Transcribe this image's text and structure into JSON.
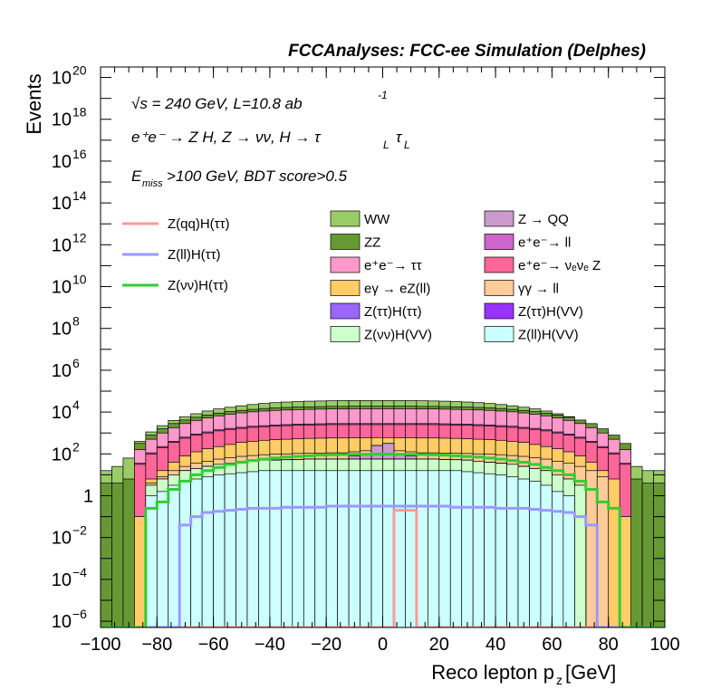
{
  "chart_data": {
    "type": "histogram",
    "title": "FCCAnalyses: FCC-ee Simulation (Delphes)",
    "xlabel": "Reco lepton p",
    "xlabel_sub": "z",
    "xlabel_unit": "[GeV]",
    "ylabel": "Events",
    "xlim": [
      -100,
      100
    ],
    "ylim_log10": [
      -6.3,
      20.5
    ],
    "log_y": true,
    "grid": false,
    "bin_edges_start": -100,
    "bin_width": 4,
    "x_ticks": [
      -100,
      -80,
      -60,
      -40,
      -20,
      0,
      20,
      40,
      60,
      80,
      100
    ],
    "x_tick_labels": [
      "−100",
      "−80",
      "−60",
      "−40",
      "−20",
      "0",
      "20",
      "40",
      "60",
      "80",
      "100"
    ],
    "y_tick_labels": [
      {
        "exp": -6,
        "base": "10",
        "sup": "−6"
      },
      {
        "exp": -4,
        "base": "10",
        "sup": "−4"
      },
      {
        "exp": -2,
        "base": "10",
        "sup": "−2"
      },
      {
        "exp": 0,
        "base": "1",
        "sup": ""
      },
      {
        "exp": 2,
        "base": "10",
        "sup": "2"
      },
      {
        "exp": 4,
        "base": "10",
        "sup": "4"
      },
      {
        "exp": 6,
        "base": "10",
        "sup": "6"
      },
      {
        "exp": 8,
        "base": "10",
        "sup": "8"
      },
      {
        "exp": 10,
        "base": "10",
        "sup": "10"
      },
      {
        "exp": 12,
        "base": "10",
        "sup": "12"
      },
      {
        "exp": 14,
        "base": "10",
        "sup": "14"
      },
      {
        "exp": 16,
        "base": "10",
        "sup": "16"
      },
      {
        "exp": 18,
        "base": "10",
        "sup": "18"
      },
      {
        "exp": 20,
        "base": "10",
        "sup": "20"
      }
    ],
    "annotations": [
      "√s = 240 GeV, L=10.8 ab",
      "-1",
      "e⁺e⁻ → Z H, Z → νν, H → τ",
      "L",
      "E",
      "miss",
      ">100 GeV, BDT score>0.5"
    ],
    "stack_layers_log10": [
      {
        "name": "Z(ℓℓ)H(VV)",
        "color": "#ccffff",
        "values": [
          -7,
          -7,
          -7,
          -7,
          0,
          0.2,
          0.5,
          0.7,
          0.8,
          0.9,
          1,
          1.05,
          1.1,
          1.15,
          1.2,
          1.2,
          1.2,
          1.2,
          1.2,
          1.2,
          1.2,
          1.2,
          1.2,
          1.2,
          1.2,
          1.2,
          1.2,
          1.2,
          1.2,
          1.2,
          1.2,
          1.2,
          1.15,
          1.1,
          1.05,
          1,
          0.9,
          0.8,
          0.7,
          0.5,
          0.2,
          0,
          -7,
          -7,
          -7,
          -7,
          -7,
          -7,
          -7,
          -7
        ]
      },
      {
        "name": "Z(νν)H(VV)",
        "color": "#ccffcc",
        "values": [
          -7,
          -7,
          -7,
          -7,
          0.5,
          0.8,
          1.0,
          1.2,
          1.3,
          1.4,
          1.5,
          1.55,
          1.6,
          1.65,
          1.7,
          1.7,
          1.72,
          1.73,
          1.75,
          1.75,
          1.75,
          1.75,
          1.75,
          1.75,
          1.75,
          1.75,
          1.75,
          1.75,
          1.75,
          1.75,
          1.73,
          1.72,
          1.7,
          1.65,
          1.6,
          1.55,
          1.5,
          1.4,
          1.3,
          1.2,
          1.0,
          0.8,
          0.5,
          -7,
          -7,
          -7,
          -7,
          -7,
          -7,
          -7
        ]
      },
      {
        "name": "Z(ττ)H(VV)",
        "color": "#9933ff",
        "values": [
          -7,
          -7,
          -7,
          -7,
          0.5,
          0.8,
          1.0,
          1.2,
          1.3,
          1.4,
          1.5,
          1.55,
          1.6,
          1.65,
          1.7,
          1.7,
          1.72,
          1.73,
          1.75,
          1.75,
          1.75,
          1.75,
          1.75,
          1.75,
          1.75,
          1.75,
          1.75,
          1.75,
          1.75,
          1.75,
          1.73,
          1.72,
          1.7,
          1.65,
          1.6,
          1.55,
          1.5,
          1.4,
          1.3,
          1.2,
          1.0,
          0.8,
          0.5,
          -7,
          -7,
          -7,
          -7,
          -7,
          -7,
          -7
        ]
      },
      {
        "name": "Z(ττ)H(ττ)",
        "color": "#9966ff",
        "values": [
          -7,
          -7,
          -7,
          -7,
          0.5,
          0.8,
          1.0,
          1.2,
          1.3,
          1.4,
          1.5,
          1.55,
          1.6,
          1.65,
          1.7,
          1.7,
          1.72,
          1.73,
          1.75,
          1.75,
          1.75,
          1.75,
          1.75,
          1.75,
          1.75,
          1.75,
          1.75,
          1.75,
          1.75,
          1.75,
          1.73,
          1.72,
          1.7,
          1.65,
          1.6,
          1.55,
          1.5,
          1.4,
          1.3,
          1.2,
          1.0,
          0.8,
          0.5,
          -7,
          -7,
          -7,
          -7,
          -7,
          -7,
          -7
        ]
      },
      {
        "name": "Z → QQ",
        "color": "#cc99cc",
        "values": [
          -7,
          -7,
          -7,
          -7,
          0.5,
          0.8,
          1.0,
          1.2,
          1.3,
          1.4,
          1.5,
          1.55,
          1.6,
          1.65,
          1.7,
          1.7,
          1.72,
          1.73,
          1.75,
          1.75,
          1.75,
          1.75,
          1.9,
          2.0,
          2.4,
          2.5,
          2.0,
          1.9,
          1.75,
          1.75,
          1.73,
          1.72,
          1.7,
          1.65,
          1.6,
          1.55,
          1.5,
          1.4,
          1.3,
          1.2,
          1.0,
          0.8,
          0.5,
          -7,
          -7,
          -7,
          -7,
          -7,
          -7,
          -7
        ]
      },
      {
        "name": "γγ → ℓℓ",
        "color": "#ffcc99",
        "values": [
          -7,
          -7,
          -7,
          -7,
          0.6,
          0.9,
          1.2,
          1.4,
          1.55,
          1.65,
          1.75,
          1.82,
          1.88,
          1.92,
          1.96,
          1.99,
          2.0,
          2.02,
          2.03,
          2.04,
          2.05,
          2.05,
          2.1,
          2.15,
          2.4,
          2.5,
          2.15,
          2.1,
          2.05,
          2.05,
          2.04,
          2.03,
          2.02,
          2.0,
          1.99,
          1.96,
          1.92,
          1.88,
          1.82,
          1.75,
          1.65,
          1.55,
          1.4,
          1.2,
          0.9,
          -7,
          -7,
          -7,
          -7,
          -7
        ]
      },
      {
        "name": "eγ → eZ(ℓℓ)",
        "color": "#ffcc66",
        "values": [
          -7,
          -7,
          -7,
          -1.0,
          0.8,
          1.2,
          1.6,
          1.9,
          2.1,
          2.25,
          2.35,
          2.45,
          2.55,
          2.6,
          2.65,
          2.68,
          2.7,
          2.72,
          2.74,
          2.75,
          2.76,
          2.76,
          2.77,
          2.77,
          2.78,
          2.78,
          2.77,
          2.77,
          2.76,
          2.76,
          2.75,
          2.74,
          2.72,
          2.7,
          2.68,
          2.65,
          2.6,
          2.55,
          2.45,
          2.35,
          2.25,
          2.1,
          1.9,
          1.6,
          1.2,
          0.8,
          -1.0,
          -7,
          -7,
          -7
        ]
      },
      {
        "name": "e⁺e⁻ → νₑνₑ Z",
        "color": "#ff6699",
        "values": [
          -7,
          -7,
          -7,
          1.5,
          2.0,
          2.3,
          2.55,
          2.75,
          2.9,
          3.0,
          3.1,
          3.17,
          3.22,
          3.27,
          3.3,
          3.33,
          3.35,
          3.37,
          3.38,
          3.39,
          3.4,
          3.4,
          3.4,
          3.4,
          3.4,
          3.4,
          3.4,
          3.4,
          3.4,
          3.4,
          3.39,
          3.38,
          3.37,
          3.35,
          3.33,
          3.3,
          3.27,
          3.22,
          3.17,
          3.1,
          3.0,
          2.9,
          2.75,
          2.55,
          2.3,
          2.0,
          1.5,
          -7,
          -7,
          -7
        ]
      },
      {
        "name": "e⁺e⁻ → ℓℓ",
        "color": "#cc66cc",
        "values": [
          -7,
          -7,
          -7,
          1.55,
          2.05,
          2.35,
          2.6,
          2.8,
          2.95,
          3.05,
          3.15,
          3.22,
          3.27,
          3.32,
          3.35,
          3.38,
          3.4,
          3.42,
          3.43,
          3.44,
          3.45,
          3.45,
          3.45,
          3.45,
          3.45,
          3.45,
          3.45,
          3.45,
          3.45,
          3.45,
          3.44,
          3.43,
          3.42,
          3.4,
          3.38,
          3.35,
          3.32,
          3.27,
          3.22,
          3.15,
          3.05,
          2.95,
          2.8,
          2.6,
          2.35,
          2.05,
          1.55,
          -7,
          -7,
          -7
        ]
      },
      {
        "name": "e⁺e⁻ → ττ",
        "color": "#ff99cc",
        "values": [
          -7,
          -7,
          -7,
          2.2,
          2.7,
          3.0,
          3.25,
          3.45,
          3.6,
          3.72,
          3.82,
          3.9,
          3.96,
          4.01,
          4.05,
          4.08,
          4.1,
          4.12,
          4.13,
          4.14,
          4.15,
          4.15,
          4.16,
          4.16,
          4.16,
          4.16,
          4.16,
          4.16,
          4.15,
          4.15,
          4.14,
          4.13,
          4.12,
          4.1,
          4.08,
          4.05,
          4.01,
          3.96,
          3.9,
          3.82,
          3.72,
          3.6,
          3.45,
          3.25,
          3.0,
          2.7,
          2.2,
          -7,
          -7,
          -7
        ]
      },
      {
        "name": "ZZ",
        "color": "#669933",
        "values": [
          0.6,
          0.6,
          0.8,
          2.5,
          2.9,
          3.2,
          3.45,
          3.62,
          3.75,
          3.86,
          3.95,
          4.02,
          4.08,
          4.13,
          4.17,
          4.2,
          4.22,
          4.24,
          4.25,
          4.26,
          4.27,
          4.27,
          4.28,
          4.28,
          4.28,
          4.28,
          4.28,
          4.28,
          4.27,
          4.27,
          4.26,
          4.25,
          4.24,
          4.22,
          4.2,
          4.17,
          4.13,
          4.08,
          4.02,
          3.95,
          3.86,
          3.75,
          3.62,
          3.45,
          3.2,
          2.9,
          2.5,
          0.8,
          0.6,
          0.6
        ]
      },
      {
        "name": "WW",
        "color": "#99cc66",
        "values": [
          1.2,
          1.4,
          1.8,
          2.6,
          3.05,
          3.35,
          3.6,
          3.78,
          3.92,
          4.05,
          4.15,
          4.23,
          4.3,
          4.36,
          4.41,
          4.45,
          4.48,
          4.5,
          4.52,
          4.53,
          4.54,
          4.55,
          4.55,
          4.55,
          4.55,
          4.55,
          4.55,
          4.55,
          4.54,
          4.53,
          4.52,
          4.5,
          4.48,
          4.45,
          4.41,
          4.36,
          4.3,
          4.23,
          4.15,
          4.05,
          3.92,
          3.78,
          3.6,
          3.35,
          3.05,
          2.6,
          1.8,
          1.4,
          1.2,
          1.2
        ]
      }
    ],
    "signal_lines_log10": [
      {
        "name": "Z(qq)H(ττ)",
        "color": "#ff9999",
        "values": [
          -7,
          -7,
          -7,
          -7,
          -7,
          -7,
          -7,
          -7,
          -7,
          -7,
          -7,
          -7,
          -7,
          -7,
          -7,
          -7,
          -7,
          -7,
          -7,
          -7,
          -7,
          -7,
          -7,
          -7,
          -7,
          -7,
          -0.7,
          -0.7,
          -7,
          -7,
          -7,
          -7,
          -7,
          -7,
          -7,
          -7,
          -7,
          -7,
          -7,
          -7,
          -7,
          -7,
          -7,
          -7,
          -7,
          -7,
          -7,
          -7,
          -7,
          -7
        ]
      },
      {
        "name": "Z(ℓℓ)H(ττ)",
        "color": "#9999ff",
        "values": [
          -7,
          -7,
          -7,
          -7,
          -7,
          -7,
          -7,
          -1.4,
          -1.0,
          -0.8,
          -0.75,
          -0.7,
          -0.65,
          -0.6,
          -0.6,
          -0.6,
          -0.55,
          -0.55,
          -0.55,
          -0.55,
          -0.5,
          -0.5,
          -0.5,
          -0.5,
          -0.5,
          -0.5,
          -0.5,
          -0.5,
          -0.5,
          -0.5,
          -0.5,
          -0.55,
          -0.55,
          -0.55,
          -0.55,
          -0.6,
          -0.6,
          -0.6,
          -0.65,
          -0.7,
          -0.75,
          -0.8,
          -1.0,
          -1.4,
          -7,
          -7,
          -7,
          -7,
          -7,
          -7
        ]
      },
      {
        "name": "Z(νν)H(ττ)",
        "color": "#33cc33",
        "values": [
          -7,
          -7,
          -7,
          -7,
          -0.6,
          -0.3,
          0.3,
          0.7,
          1.0,
          1.2,
          1.35,
          1.5,
          1.6,
          1.68,
          1.75,
          1.8,
          1.85,
          1.88,
          1.91,
          1.94,
          1.96,
          1.97,
          1.98,
          1.98,
          1.99,
          1.99,
          1.98,
          1.98,
          1.97,
          1.96,
          1.94,
          1.91,
          1.88,
          1.85,
          1.8,
          1.75,
          1.68,
          1.6,
          1.5,
          1.35,
          1.2,
          1.0,
          0.7,
          0.3,
          -0.3,
          -0.6,
          -7,
          -7,
          -7,
          -7
        ]
      }
    ],
    "legend_left": [
      {
        "label": "Z(qq)H(ττ)",
        "color": "#ff9999"
      },
      {
        "label": "Z(ll)H(ττ)",
        "color": "#9999ff"
      },
      {
        "label": "Z(νν)H(ττ)",
        "color": "#33cc33"
      }
    ],
    "legend_mid": [
      {
        "label": "WW",
        "color": "#99cc66"
      },
      {
        "label": "ZZ",
        "color": "#669933"
      },
      {
        "label": "e⁺e⁻→ ττ",
        "color": "#ff99cc"
      },
      {
        "label": "eγ → eZ(ll)",
        "color": "#ffcc66"
      },
      {
        "label": "Z(ττ)H(ττ)",
        "color": "#9966ff"
      },
      {
        "label": "Z(νν)H(VV)",
        "color": "#ccffcc"
      }
    ],
    "legend_right": [
      {
        "label": "Z → QQ",
        "color": "#cc99cc"
      },
      {
        "label": "e⁺e⁻→ ll",
        "color": "#cc66cc"
      },
      {
        "label": "e⁺e⁻→ νₑνₑ Z",
        "color": "#ff6699"
      },
      {
        "label": "γγ → ll",
        "color": "#ffcc99"
      },
      {
        "label": "Z(ττ)H(VV)",
        "color": "#9933ff"
      },
      {
        "label": "Z(ll)H(VV)",
        "color": "#ccffff"
      }
    ]
  }
}
